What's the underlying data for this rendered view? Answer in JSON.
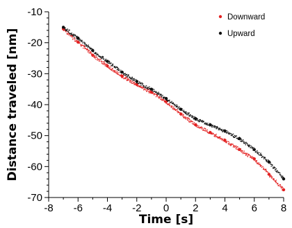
{
  "chart_data": {
    "type": "scatter",
    "title": "",
    "xlabel": "Time [s]",
    "ylabel": "Distance traveled [nm]",
    "xlim": [
      -8,
      8
    ],
    "ylim": [
      -70,
      -10
    ],
    "xticks": [
      "-8",
      "-6",
      "-4",
      "-2",
      "0",
      "2",
      "4",
      "6",
      "8"
    ],
    "yticks": [
      "-10",
      "-20",
      "-30",
      "-40",
      "-50",
      "-60",
      "-70"
    ],
    "grid": false,
    "legend_position": "top-right",
    "series": [
      {
        "name": "Downward",
        "color": "#e32222",
        "x": [
          -7.0,
          -6.0,
          -5.0,
          -4.0,
          -3.0,
          -2.0,
          -1.0,
          0.0,
          1.0,
          2.0,
          3.0,
          4.0,
          5.0,
          6.0,
          7.0,
          8.0
        ],
        "y": [
          -15.5,
          -19.8,
          -24.0,
          -27.5,
          -30.8,
          -33.5,
          -36.0,
          -39.0,
          -43.0,
          -46.5,
          -49.0,
          -51.5,
          -54.5,
          -57.5,
          -62.5,
          -67.5
        ]
      },
      {
        "name": "Upward",
        "color": "#111111",
        "x": [
          -7.0,
          -6.0,
          -5.0,
          -4.0,
          -3.0,
          -2.0,
          -1.0,
          0.0,
          1.0,
          2.0,
          3.0,
          4.0,
          5.0,
          6.0,
          7.0,
          8.0
        ],
        "y": [
          -15.0,
          -18.5,
          -22.5,
          -26.0,
          -29.5,
          -32.5,
          -35.0,
          -38.0,
          -41.5,
          -44.5,
          -46.5,
          -48.5,
          -51.0,
          -54.5,
          -58.5,
          -64.0
        ]
      }
    ]
  }
}
